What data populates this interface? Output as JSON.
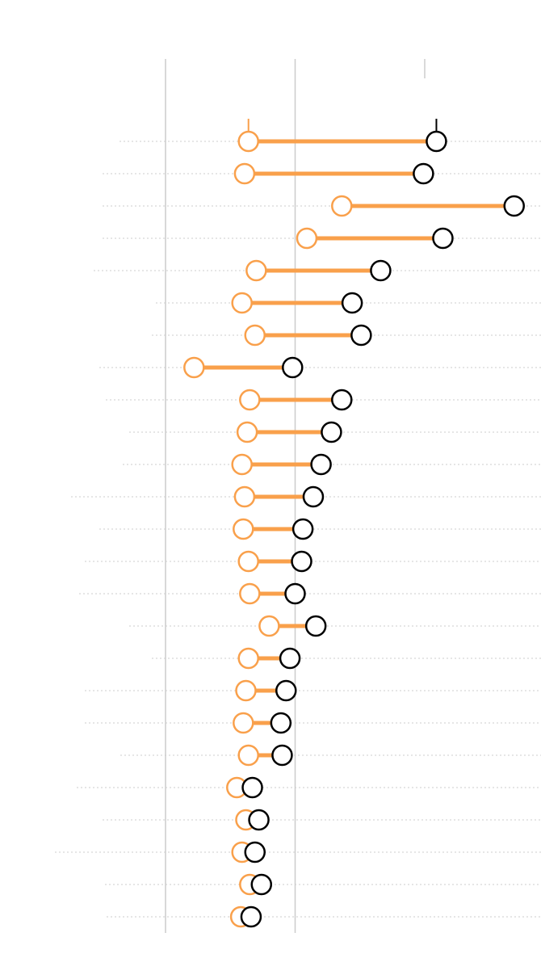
{
  "chart_data": {
    "type": "dumbbell",
    "title": "",
    "xlabel": "",
    "ylabel": "",
    "gridlines_x": [
      0,
      1,
      2
    ],
    "grid": true,
    "legend": "none",
    "xlim": [
      -0.16,
      2.88
    ],
    "colors": {
      "start": "#f9a04b",
      "end": "#000000",
      "connector": "#f9a04b",
      "grid": "#cccccc",
      "row_guide": "#cccccc"
    },
    "series": [
      {
        "values": [
          0.64,
          0.61,
          1.36,
          1.09,
          0.7,
          0.59,
          0.69,
          0.22,
          0.65,
          0.63,
          0.59,
          0.61,
          0.6,
          0.64,
          0.65,
          0.8,
          0.64,
          0.62,
          0.6,
          0.64,
          0.55,
          0.62,
          0.59,
          0.65,
          0.58
        ]
      },
      {
        "values": [
          2.09,
          1.99,
          2.69,
          2.14,
          1.66,
          1.44,
          1.51,
          0.98,
          1.36,
          1.28,
          1.2,
          1.14,
          1.06,
          1.05,
          1.0,
          1.16,
          0.96,
          0.93,
          0.89,
          0.9,
          0.67,
          0.72,
          0.69,
          0.74,
          0.66
        ]
      }
    ]
  }
}
